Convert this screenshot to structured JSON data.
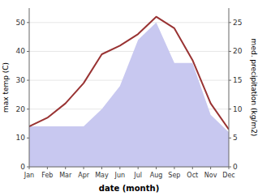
{
  "chart_data": {
    "type": "line",
    "xlabel": "date (month)",
    "ylabel": "max temp (C)",
    "y2label": "med. precipitation (kg/m2)",
    "categories": [
      "Jan",
      "Feb",
      "Mar",
      "Apr",
      "May",
      "Jun",
      "Jul",
      "Aug",
      "Sep",
      "Oct",
      "Nov",
      "Dec"
    ],
    "series": [
      {
        "type": "area",
        "axis": "y2",
        "color": "#c8c8f0",
        "values": [
          7,
          7,
          7,
          7,
          10,
          14,
          22,
          25,
          18,
          18,
          9,
          6
        ]
      },
      {
        "type": "line",
        "color": "#993333",
        "values": [
          14,
          17,
          22,
          29,
          39,
          42,
          46,
          52,
          48,
          37,
          22,
          13
        ]
      }
    ],
    "ylim": [
      0,
      55
    ],
    "yticks": [
      0,
      10,
      20,
      30,
      40,
      50
    ],
    "y2lim": [
      0,
      27.5
    ],
    "y2ticks": [
      0,
      5,
      10,
      15,
      20,
      25
    ]
  }
}
